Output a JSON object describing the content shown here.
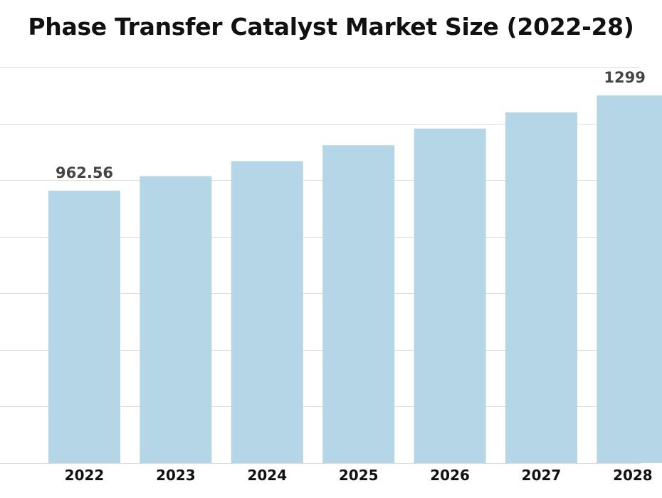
{
  "chart_data": {
    "type": "bar",
    "title": "Phase Transfer Catalyst Market Size (2022-28)",
    "xlabel": "",
    "ylabel": "",
    "categories": [
      "2022",
      "2023",
      "2024",
      "2025",
      "2026",
      "2027",
      "2028"
    ],
    "values": [
      962.56,
      1014,
      1067,
      1123,
      1182,
      1239,
      1299
    ],
    "data_labels": [
      {
        "index": 0,
        "text": "962.56"
      },
      {
        "index": 6,
        "text": "1299"
      }
    ],
    "ylim": [
      0,
      1400
    ],
    "grid": true,
    "legend": "none",
    "bar_color": "#b5d6e6"
  }
}
